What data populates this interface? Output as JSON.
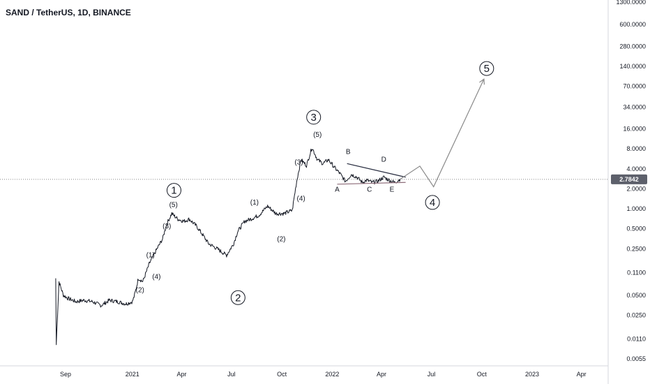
{
  "chart_data": {
    "type": "line",
    "title": "SAND / TetherUS, 1D, BINANCE",
    "y_scale": "log",
    "ylim": [
      0.0045,
      1300
    ],
    "y_ticks": [
      "1300.0000",
      "600.0000",
      "280.0000",
      "140.0000",
      "70.0000",
      "34.0000",
      "16.0000",
      "8.0000",
      "4.0000",
      "2.0000",
      "1.0000",
      "0.5000",
      "0.2500",
      "0.1100",
      "0.0500",
      "0.0250",
      "0.0110",
      "0.0055"
    ],
    "x_ticks": [
      "Sep",
      "2021",
      "Apr",
      "Jul",
      "Oct",
      "2022",
      "Apr",
      "Jul",
      "Oct",
      "2023",
      "Apr"
    ],
    "current_price": "2.7842",
    "series": [
      {
        "x": [
          "2020-08-14",
          "2020-08-15",
          "2020-08-20",
          "2020-08-28",
          "2020-09-05",
          "2020-09-20",
          "2020-10-05",
          "2020-10-20",
          "2020-11-05",
          "2020-11-20",
          "2020-12-05",
          "2020-12-20",
          "2021-01-01",
          "2021-01-05",
          "2021-01-12",
          "2021-01-20",
          "2021-02-01",
          "2021-02-15",
          "2021-02-25",
          "2021-03-05",
          "2021-03-14",
          "2021-03-25",
          "2021-04-05",
          "2021-04-15",
          "2021-04-28",
          "2021-05-10",
          "2021-05-20",
          "2021-06-05",
          "2021-06-22",
          "2021-07-05",
          "2021-07-12",
          "2021-07-25",
          "2021-08-05",
          "2021-08-20",
          "2021-09-05",
          "2021-09-20",
          "2021-10-05",
          "2021-10-20",
          "2021-10-28",
          "2021-11-05",
          "2021-11-15",
          "2021-11-25",
          "2021-12-05",
          "2021-12-15",
          "2021-12-25",
          "2022-01-05",
          "2022-01-15",
          "2022-01-25",
          "2022-02-05",
          "2022-02-15",
          "2022-02-25",
          "2022-03-05",
          "2022-03-15",
          "2022-03-25",
          "2022-04-05",
          "2022-04-15",
          "2022-04-25",
          "2022-05-05"
        ],
        "y": [
          0.09,
          0.009,
          0.08,
          0.05,
          0.045,
          0.04,
          0.042,
          0.04,
          0.035,
          0.042,
          0.04,
          0.037,
          0.04,
          0.05,
          0.09,
          0.08,
          0.15,
          0.25,
          0.35,
          0.6,
          0.85,
          0.7,
          0.65,
          0.7,
          0.55,
          0.4,
          0.3,
          0.25,
          0.2,
          0.3,
          0.45,
          0.65,
          0.7,
          0.8,
          1.1,
          0.85,
          0.85,
          0.95,
          2.6,
          5.5,
          4.5,
          8.4,
          5.5,
          4.8,
          5.5,
          4.2,
          3.4,
          2.6,
          3.3,
          3.0,
          2.5,
          2.7,
          2.5,
          2.6,
          3.0,
          2.7,
          2.5,
          2.8
        ]
      }
    ],
    "wave_labels": {
      "major": [
        "1",
        "2",
        "3",
        "4",
        "5"
      ],
      "minor": [
        "(1)",
        "(2)",
        "(3)",
        "(4)",
        "(5)"
      ],
      "abc": [
        "A",
        "B",
        "C",
        "D",
        "E"
      ]
    },
    "colors": {
      "price": "#131722",
      "projection": "#8a8a8a",
      "triangle_upper": "#262b3e",
      "triangle_lower": "#8c6b78",
      "price_label_bg": "#5d606b",
      "current_line": "#888888"
    }
  }
}
